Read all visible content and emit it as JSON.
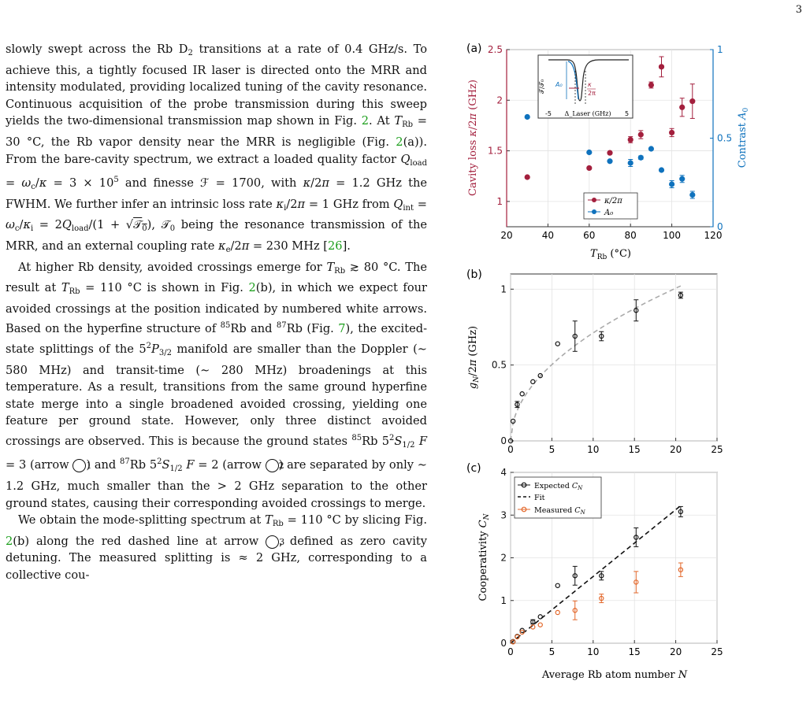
{
  "page_number": "3",
  "paragraphs": [
    {
      "indent": false,
      "html": "slowly swept across the Rb D<span class=\"sub\">2</span> transitions at a rate of 0.4 GHz/s. To achieve this, a tightly focused IR laser is directed onto the MRR and intensity modulated, providing localized tuning of the cavity resonance. Continuous acquisition of the probe transmission during this sweep yields the two-dimensional transmission map shown in Fig. <span class=\"link\">2</span>. At <i>T</i><span class=\"sub\">Rb</span> = 30 °C, the Rb vapor density near the MRR is negligible (Fig. <span class=\"link\">2</span>(a)). From the bare-cavity spectrum, we extract a loaded quality factor <i>Q</i><span class=\"sub\">load</span> = <i>ω</i><span class=\"sub\">c</span>/<i>κ</i> = 3 × 10<span class=\"sup\">5</span> and finesse ℱ = 1700, with <i>κ</i>/2<i>π</i> = 1.2 GHz the FWHM. We further infer an intrinsic loss rate <i>κ</i><span class=\"sub\">i</span>/2<i>π</i> = 1 GHz from <i>Q</i><span class=\"sub\">int</span> = <i>ω</i><span class=\"sub\">c</span>/<i>κ</i><span class=\"sub\">i</span> = 2<i>Q</i><span class=\"sub\">load</span>/(1 + √<span style=\"text-decoration:overline\">𝒯<span class=\"sub\">0</span></span>), 𝒯<span class=\"sub\">0</span> being the resonance transmission of the MRR, and an external coupling rate <i>κ</i><span class=\"sub\">e</span>/2<i>π</i> = 230 MHz [<span class=\"link\">26</span>]."
    },
    {
      "indent": true,
      "html": "At higher Rb density, avoided crossings emerge for <i>T</i><span class=\"sub\">Rb</span> ≳ 80 °C. The result at <i>T</i><span class=\"sub\">Rb</span> = 110 °C is shown in Fig. <span class=\"link\">2</span>(b), in which we expect four avoided crossings at the position indicated by numbered white arrows. Based on the hyperfine structure of <span class=\"sup\">85</span>Rb and <span class=\"sup\">87</span>Rb (Fig. <span class=\"link\">7</span>), the excited-state splittings of the 5<span class=\"sup\">2</span><i>P</i><span class=\"sub\">3/2</span> manifold are smaller than the Doppler (∼ 580 MHz) and transit-time (∼ 280 MHz) broadenings at this temperature. As a result, transitions from the same ground hyperfine state merge into a single broadened avoided crossing, yielding one feature per ground state. However, only three distinct avoided crossings are observed. This is because the ground states <span class=\"sup\">85</span>Rb 5<span class=\"sup\">2</span><i>S</i><span class=\"sub\">1/2</span> <i>F</i> = 3 (arrow <span class=\"circ\">1</span>) and <span class=\"sup\">87</span>Rb 5<span class=\"sup\">2</span><i>S</i><span class=\"sub\">1/2</span> <i>F</i> = 2 (arrow <span class=\"circ\">2</span>) are separated by only ∼ 1.2 GHz, much smaller than the &gt; 2 GHz separation to the other ground states, causing their corresponding avoided crossings to merge."
    },
    {
      "indent": true,
      "html": "We obtain the mode-splitting spectrum at <i>T</i><span class=\"sub\">Rb</span> = 110 °C by slicing Fig. <span class=\"link\">2</span>(b) along the red dashed line at arrow <span class=\"circ\">3</span>, defined as zero cavity detuning. The measured splitting is ≈ 2 GHz, corresponding to a collective cou-"
    }
  ],
  "colors": {
    "red": "#a31f3d",
    "blue": "#0f72bd",
    "orange": "#e3672a",
    "grid": "#e3e3e3"
  },
  "chart_data": [
    {
      "panel": "(a)",
      "type": "scatter",
      "xlabel": "T_Rb (°C)",
      "ylabel_left": "Cavity loss κ/2π (GHz)",
      "ylabel_right": "Contrast A₀",
      "xlim": [
        20,
        120
      ],
      "ylim_left": [
        0.75,
        2.5
      ],
      "ylim_right": [
        0,
        1
      ],
      "xticks": [
        20,
        40,
        60,
        80,
        100,
        120
      ],
      "yticks_left": [
        1,
        1.5,
        2,
        2.5
      ],
      "yticks_right": [
        0,
        0.5,
        1
      ],
      "legend": [
        "κ/2π",
        "A₀"
      ],
      "series": [
        {
          "name": "κ/2π",
          "axis": "left",
          "points": [
            [
              30,
              1.24,
              0
            ],
            [
              60,
              1.33,
              0
            ],
            [
              70,
              1.48,
              0
            ],
            [
              80,
              1.61,
              0.03
            ],
            [
              85,
              1.66,
              0.04
            ],
            [
              90,
              2.15,
              0.03
            ],
            [
              95,
              2.33,
              0.1
            ],
            [
              100,
              1.68,
              0.04
            ],
            [
              105,
              1.93,
              0.09
            ],
            [
              110,
              1.99,
              0.17
            ]
          ]
        },
        {
          "name": "A₀",
          "axis": "right",
          "points": [
            [
              30,
              0.62,
              0
            ],
            [
              60,
              0.42,
              0
            ],
            [
              70,
              0.37,
              0
            ],
            [
              80,
              0.36,
              0.02
            ],
            [
              85,
              0.39,
              0.01
            ],
            [
              90,
              0.44,
              0
            ],
            [
              95,
              0.32,
              0
            ],
            [
              100,
              0.24,
              0.02
            ],
            [
              105,
              0.27,
              0.02
            ],
            [
              110,
              0.18,
              0.02
            ]
          ]
        }
      ],
      "inset": {
        "ylabel": "𝒯/𝒯₀",
        "xlabel": "Δ_Laser (GHz)",
        "xticks": [
          "-5",
          "5"
        ],
        "labels": [
          "A₀",
          "κ",
          "2π"
        ]
      }
    },
    {
      "panel": "(b)",
      "type": "scatter",
      "xlabel": "",
      "ylabel": "g_N/2π (GHz)",
      "xlim": [
        0,
        25
      ],
      "ylim": [
        0,
        1.1
      ],
      "xticks": [
        0,
        5,
        10,
        15,
        20,
        25
      ],
      "yticks": [
        0,
        0.5,
        1
      ],
      "points": [
        [
          0,
          0,
          0
        ],
        [
          0.3,
          0.13,
          0
        ],
        [
          0.8,
          0.24,
          0.02
        ],
        [
          1.4,
          0.31,
          0
        ],
        [
          2.7,
          0.39,
          0
        ],
        [
          3.6,
          0.43,
          0
        ],
        [
          5.7,
          0.64,
          0
        ],
        [
          7.8,
          0.69,
          0.1
        ],
        [
          11.0,
          0.69,
          0.03
        ],
        [
          15.2,
          0.86,
          0.07
        ],
        [
          20.6,
          0.96,
          0.02
        ]
      ],
      "fit_curve": "dashed √N"
    },
    {
      "panel": "(c)",
      "type": "scatter",
      "xlabel": "Average Rb atom number N",
      "ylabel": "Cooperativity C_N",
      "xlim": [
        0,
        25
      ],
      "ylim": [
        0,
        4
      ],
      "xticks": [
        0,
        5,
        10,
        15,
        20,
        25
      ],
      "yticks": [
        0,
        1,
        2,
        3,
        4
      ],
      "legend": [
        "Expected C_N",
        "Fit",
        "Measured C_N"
      ],
      "series": [
        {
          "name": "Expected C_N",
          "points": [
            [
              0.3,
              0.04,
              0
            ],
            [
              0.8,
              0.16,
              0
            ],
            [
              1.4,
              0.3,
              0
            ],
            [
              2.7,
              0.5,
              0.05
            ],
            [
              3.6,
              0.62,
              0
            ],
            [
              5.7,
              1.35,
              0
            ],
            [
              7.8,
              1.58,
              0.22
            ],
            [
              11.0,
              1.58,
              0.1
            ],
            [
              15.2,
              2.48,
              0.22
            ],
            [
              20.6,
              3.08,
              0.12
            ]
          ]
        },
        {
          "name": "Measured C_N",
          "points": [
            [
              0.3,
              0.03,
              0
            ],
            [
              0.8,
              0.15,
              0
            ],
            [
              1.4,
              0.26,
              0
            ],
            [
              2.7,
              0.38,
              0
            ],
            [
              3.6,
              0.43,
              0
            ],
            [
              5.7,
              0.72,
              0
            ],
            [
              7.8,
              0.77,
              0.22
            ],
            [
              11.0,
              1.05,
              0.1
            ],
            [
              15.2,
              1.43,
              0.25
            ],
            [
              20.6,
              1.72,
              0.16
            ]
          ]
        }
      ],
      "fit_line": [
        [
          0,
          0
        ],
        [
          20.6,
          3.22
        ]
      ]
    }
  ]
}
